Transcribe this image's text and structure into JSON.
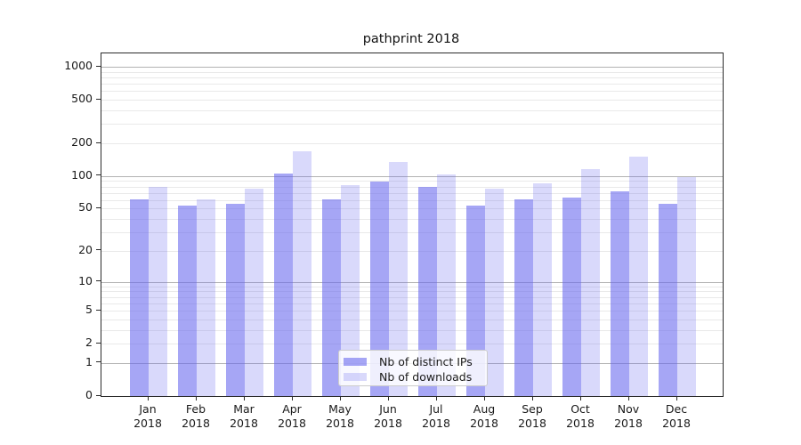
{
  "chart_data": {
    "type": "bar",
    "title": "pathprint 2018",
    "categories": [
      "Jan",
      "Feb",
      "Mar",
      "Apr",
      "May",
      "Jun",
      "Jul",
      "Aug",
      "Sep",
      "Oct",
      "Nov",
      "Dec"
    ],
    "year": "2018",
    "series": [
      {
        "name": "Nb of distinct IPs",
        "color": "rgba(102,102,238,0.58)",
        "values": [
          61,
          53,
          56,
          105,
          61,
          89,
          80,
          53,
          61,
          63,
          72,
          56
        ]
      },
      {
        "name": "Nb of downloads",
        "color": "rgba(102,102,238,0.25)",
        "values": [
          79,
          61,
          77,
          168,
          82,
          134,
          103,
          76,
          86,
          116,
          151,
          98
        ]
      }
    ],
    "yscale": "log1p",
    "ylim": [
      0,
      1325
    ],
    "yticks": [
      "0",
      "1",
      "2",
      "5",
      "10",
      "20",
      "50",
      "100",
      "200",
      "500",
      "1000"
    ],
    "grid": {
      "major": [
        1,
        10,
        100,
        1000
      ],
      "minor": [
        2,
        3,
        4,
        5,
        6,
        7,
        8,
        9,
        20,
        30,
        40,
        50,
        60,
        70,
        80,
        90,
        200,
        300,
        400,
        500,
        600,
        700,
        800,
        900
      ]
    },
    "legend_position": "lower center",
    "colors": {
      "major_grid": "#b3b3b3",
      "minor_grid": "#e9e9e9",
      "spine": "#2b2b2b",
      "title_text": "#111111",
      "tick_text": "#1a1a1a"
    }
  }
}
